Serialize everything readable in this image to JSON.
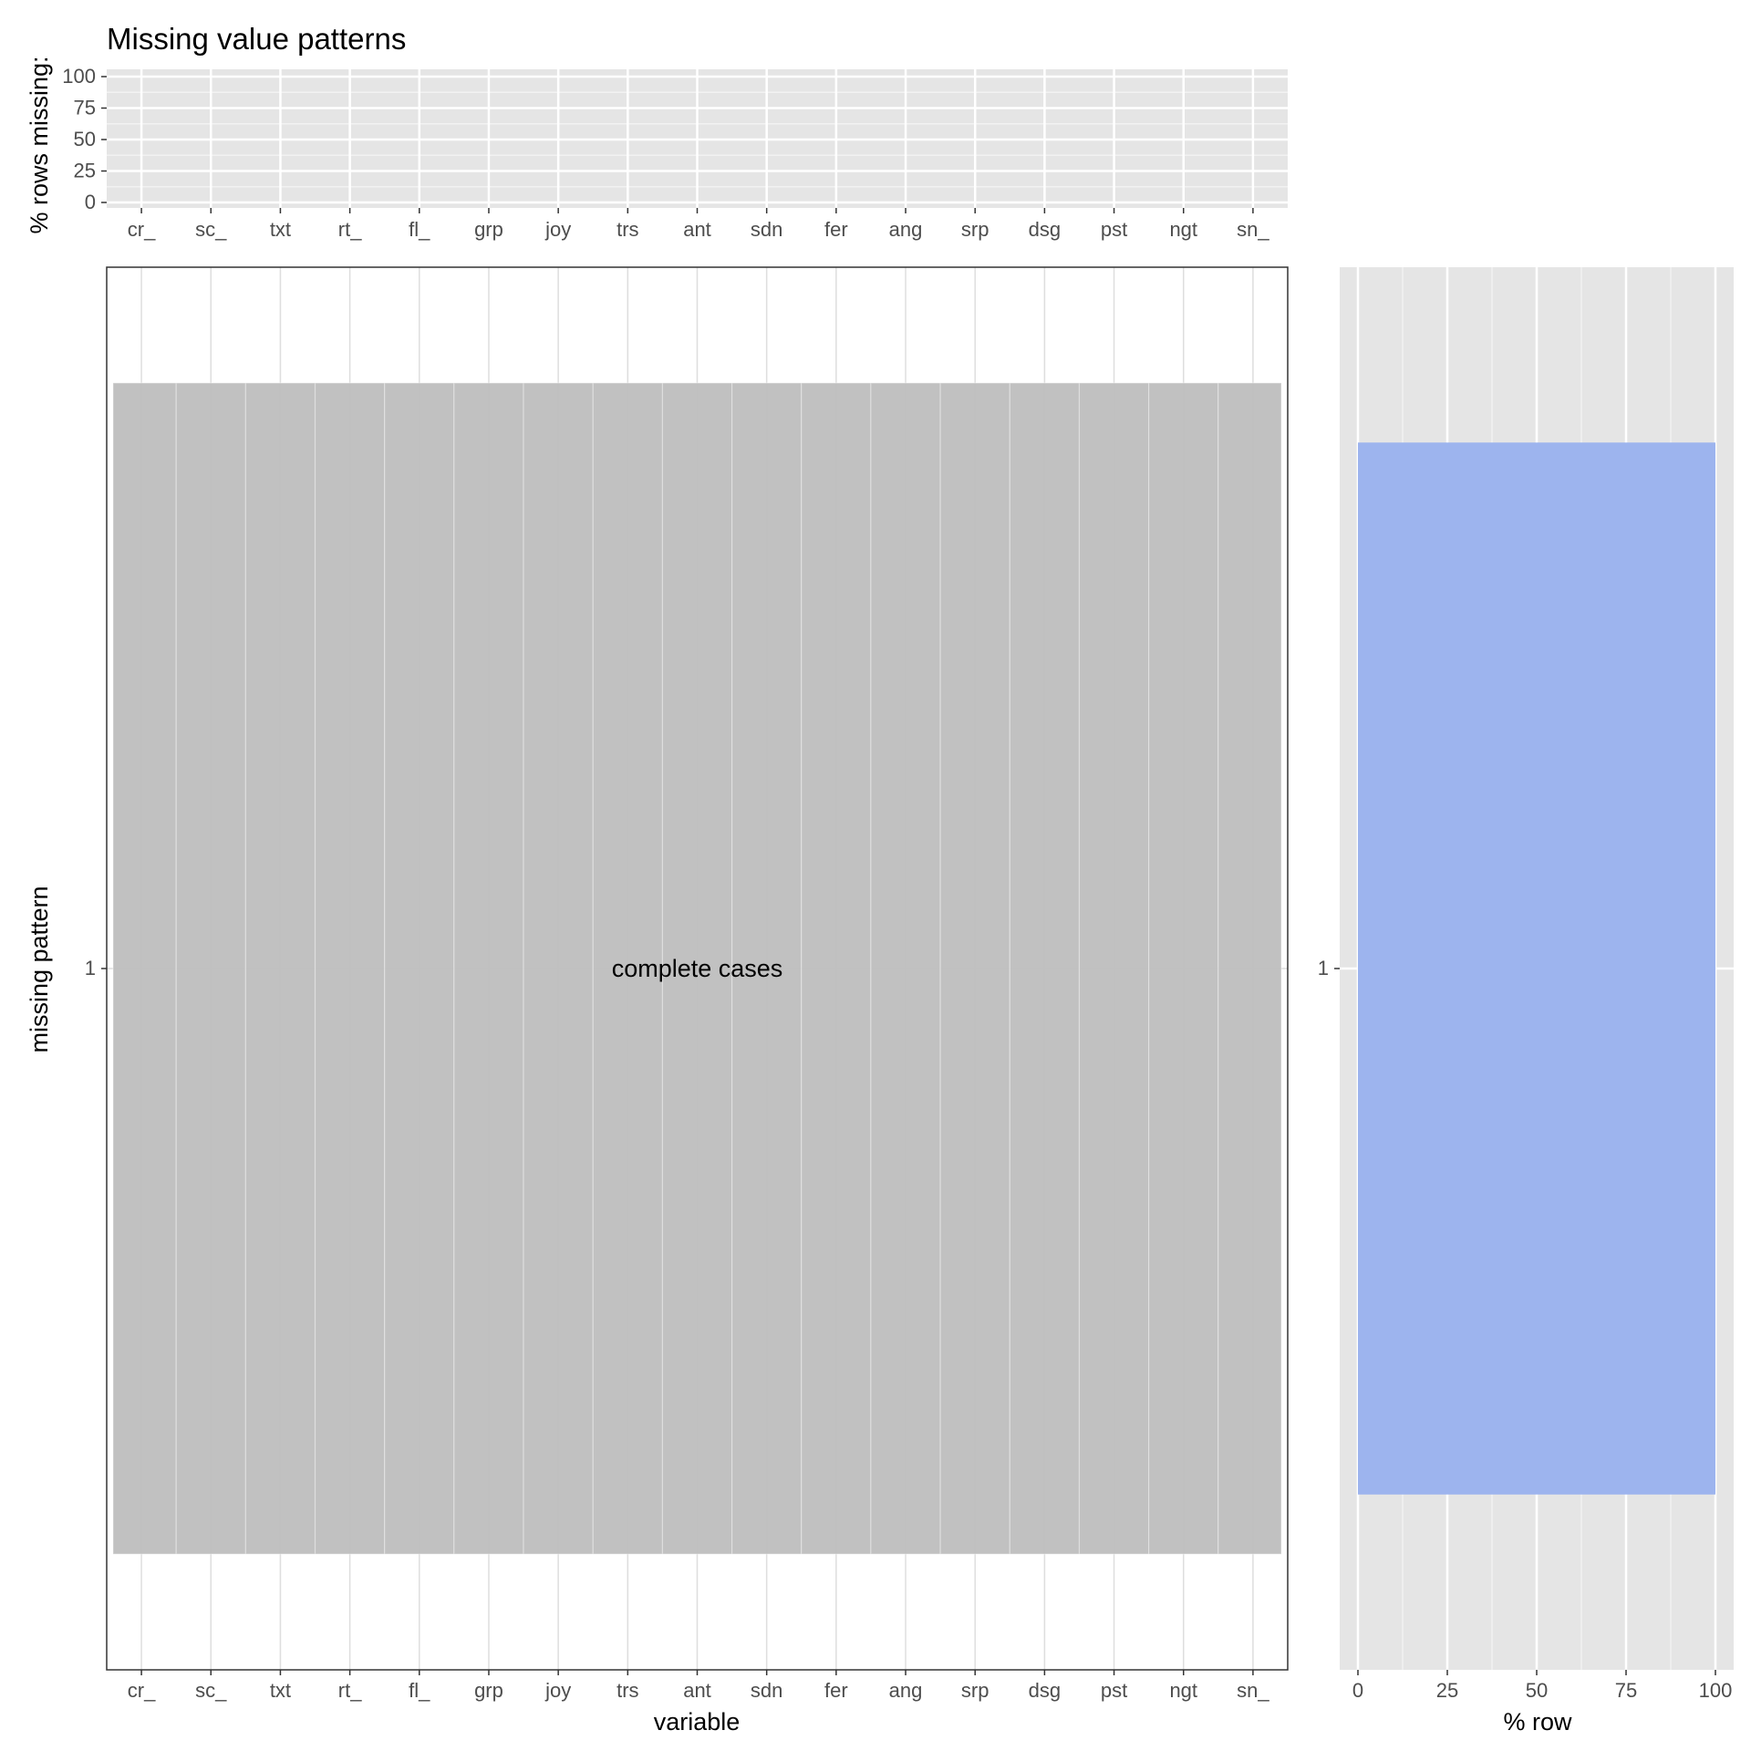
{
  "chart_data": [
    {
      "type": "bar",
      "title": "Missing value patterns",
      "ylabel": "% rows missing:",
      "xlabel": "",
      "categories": [
        "cr_",
        "sc_",
        "txt",
        "rt_",
        "fl_",
        "grp",
        "joy",
        "trs",
        "ant",
        "sdn",
        "fer",
        "ang",
        "srp",
        "dsg",
        "pst",
        "ngt",
        "sn_"
      ],
      "values": [
        0,
        0,
        0,
        0,
        0,
        0,
        0,
        0,
        0,
        0,
        0,
        0,
        0,
        0,
        0,
        0,
        0
      ],
      "ylim": [
        0,
        100
      ],
      "yticks": [
        0,
        25,
        50,
        75,
        100
      ],
      "grid": true
    },
    {
      "type": "heatmap",
      "xlabel": "variable",
      "ylabel": "missing pattern",
      "x": [
        "cr_",
        "sc_",
        "txt",
        "rt_",
        "fl_",
        "grp",
        "joy",
        "trs",
        "ant",
        "sdn",
        "fer",
        "ang",
        "srp",
        "dsg",
        "pst",
        "ngt",
        "sn_"
      ],
      "y": [
        "1"
      ],
      "cells": [
        [
          0,
          0,
          0,
          0,
          0,
          0,
          0,
          0,
          0,
          0,
          0,
          0,
          0,
          0,
          0,
          0,
          0
        ]
      ],
      "annotations": [
        {
          "row": "1",
          "text": "complete cases"
        }
      ],
      "colors": {
        "observed": "#bebebe"
      },
      "grid": true
    },
    {
      "type": "bar",
      "orientation": "horizontal",
      "xlabel": "% row",
      "ylabel": "",
      "categories": [
        "1"
      ],
      "values": [
        100
      ],
      "xlim": [
        0,
        100
      ],
      "xticks": [
        0,
        25,
        50,
        75,
        100
      ],
      "colors": {
        "bar": "#9bb3ee"
      },
      "grid": true
    }
  ]
}
